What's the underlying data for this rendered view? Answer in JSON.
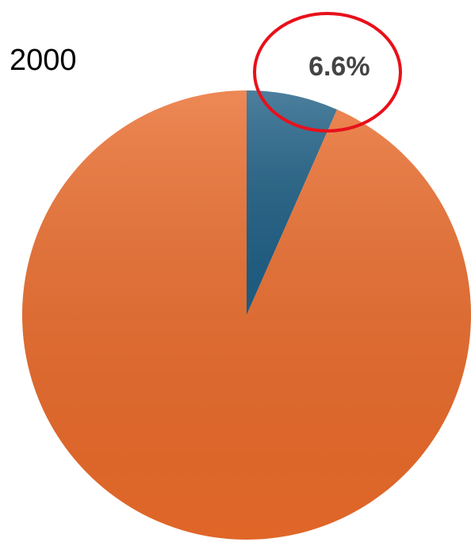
{
  "chart_data": {
    "type": "pie",
    "title": "2000",
    "values": [
      6.6,
      93.4
    ],
    "value_labels": [
      "6.6%",
      null
    ],
    "colors": [
      "#1f5f85",
      "#e96a2a"
    ]
  }
}
